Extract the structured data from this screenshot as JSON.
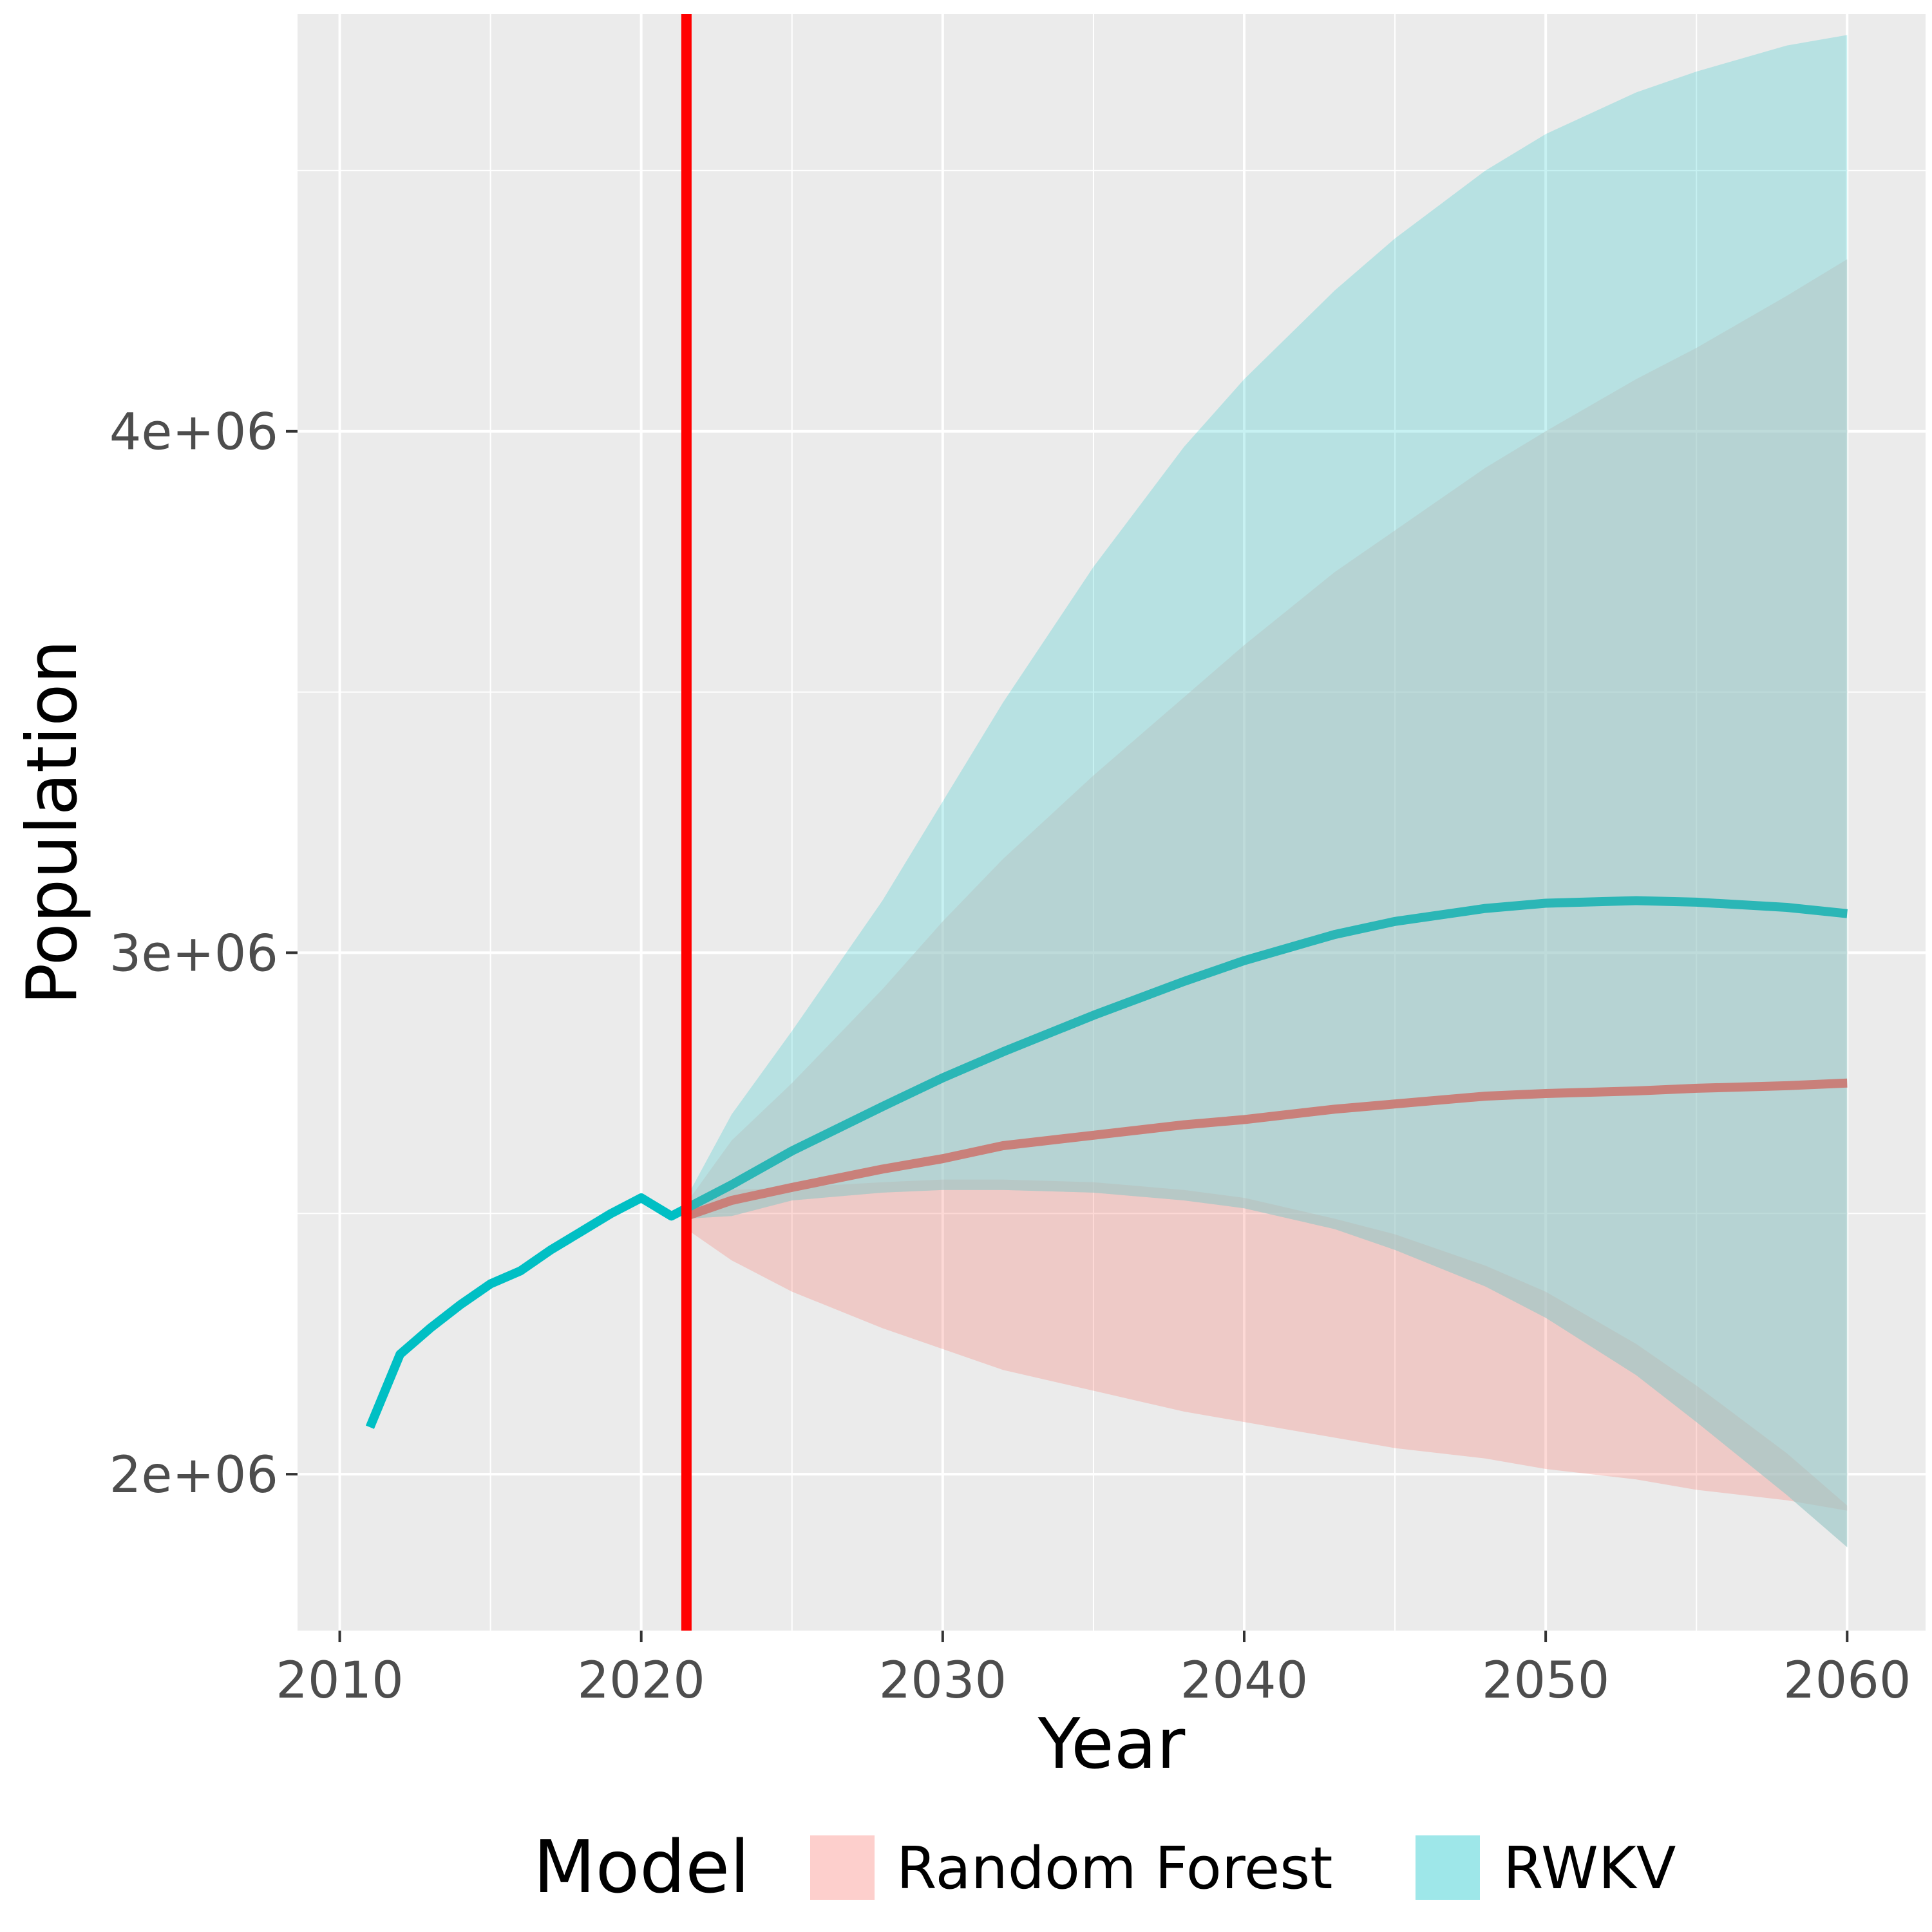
{
  "chart_data": {
    "type": "area",
    "xlabel": "Year",
    "ylabel": "Population",
    "xlim": [
      2008.6,
      2062.6
    ],
    "ylim": [
      1700000,
      4800000
    ],
    "x_ticks": [
      2010,
      2020,
      2030,
      2040,
      2050,
      2060
    ],
    "x_tick_labels": [
      "2010",
      "2020",
      "2030",
      "2040",
      "2050",
      "2060"
    ],
    "y_ticks": [
      2000000,
      3000000,
      4000000
    ],
    "y_tick_labels": [
      "2e+06",
      "3e+06",
      "4e+06"
    ],
    "grid": true,
    "reference_line": {
      "x": 2021.5,
      "color": "#ff0000"
    },
    "legend": {
      "title": "Model",
      "position": "bottom",
      "entries": [
        "Random Forest",
        "RWKV"
      ]
    },
    "history": {
      "color": "#00bfc4",
      "x": [
        2011,
        2012,
        2013,
        2014,
        2015,
        2016,
        2017,
        2018,
        2019,
        2020,
        2021,
        2021.5
      ],
      "y": [
        2090000,
        2230000,
        2280000,
        2325000,
        2365000,
        2390000,
        2430000,
        2465000,
        2500000,
        2530000,
        2495000,
        2510000
      ]
    },
    "series": [
      {
        "name": "Random Forest",
        "color": "#f8766d",
        "x": [
          2021.5,
          2023,
          2025,
          2028,
          2030,
          2032,
          2035,
          2038,
          2040,
          2043,
          2045,
          2048,
          2050,
          2053,
          2055,
          2058,
          2060
        ],
        "y": [
          2495000,
          2525000,
          2550000,
          2585000,
          2605000,
          2630000,
          2650000,
          2670000,
          2680000,
          2700000,
          2710000,
          2725000,
          2730000,
          2735000,
          2740000,
          2745000,
          2750000
        ],
        "lower": [
          2470000,
          2410000,
          2350000,
          2280000,
          2240000,
          2200000,
          2160000,
          2120000,
          2100000,
          2070000,
          2050000,
          2030000,
          2010000,
          1990000,
          1970000,
          1950000,
          1930000
        ],
        "upper": [
          2520000,
          2545000,
          2550000,
          2560000,
          2565000,
          2565000,
          2560000,
          2545000,
          2530000,
          2490000,
          2460000,
          2400000,
          2350000,
          2250000,
          2170000,
          2040000,
          1940000
        ]
      },
      {
        "name": "RWKV",
        "color": "#00bfc4",
        "x": [
          2021.5,
          2023,
          2025,
          2028,
          2030,
          2032,
          2035,
          2038,
          2040,
          2043,
          2045,
          2048,
          2050,
          2053,
          2055,
          2058,
          2060
        ],
        "y": [
          2510000,
          2555000,
          2620000,
          2705000,
          2760000,
          2810000,
          2880000,
          2945000,
          2985000,
          3035000,
          3060000,
          3085000,
          3095000,
          3100000,
          3097000,
          3087000,
          3075000
        ],
        "lower": [
          2490000,
          2495000,
          2525000,
          2540000,
          2545000,
          2545000,
          2540000,
          2525000,
          2510000,
          2470000,
          2430000,
          2360000,
          2300000,
          2190000,
          2100000,
          1960000,
          1860000
        ],
        "upper": [
          2530000,
          2690000,
          2850000,
          3100000,
          3290000,
          3480000,
          3740000,
          3970000,
          4100000,
          4270000,
          4370000,
          4500000,
          4570000,
          4650000,
          4690000,
          4740000,
          4760000
        ],
        "lower_overlap_upper": [
          2520000,
          2640000,
          2750000,
          2930000,
          3060000,
          3180000,
          3340000,
          3490000,
          3590000,
          3730000,
          3810000,
          3930000,
          4000000,
          4100000,
          4160000,
          4260000,
          4330000
        ]
      }
    ]
  }
}
